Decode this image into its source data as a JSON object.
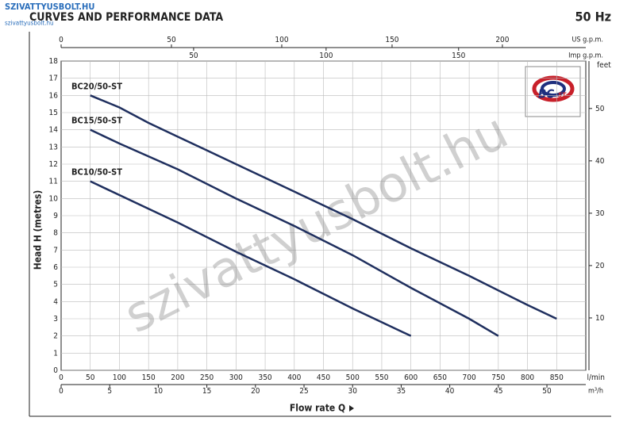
{
  "chart_data": {
    "type": "line",
    "title": "CURVES AND PERFORMANCE DATA",
    "frequency": "50 Hz",
    "brand": "SZIVATTYUSBOLT.HU",
    "brand_url": "szivattyusbolt.hu",
    "watermark": "szivattyusbolt.hu",
    "logo": {
      "main": "BC",
      "suffix": "-ST"
    },
    "xlabel": "Flow rate Q",
    "ylabel": "Head H (metres)",
    "x_unit": "l/min",
    "xlim": [
      0,
      900
    ],
    "xticks": [
      50,
      100,
      150,
      200,
      250,
      300,
      350,
      400,
      450,
      500,
      550,
      600,
      650,
      700,
      750,
      800,
      850
    ],
    "x_origin_label": 0,
    "ylim": [
      0,
      18
    ],
    "yticks": [
      0,
      1,
      2,
      3,
      4,
      5,
      6,
      7,
      8,
      9,
      10,
      11,
      12,
      13,
      14,
      15,
      16,
      17,
      18
    ],
    "grid": true,
    "secondary_axes": [
      {
        "name": "US g.p.m.",
        "position": "top",
        "lim": [
          0,
          237.8
        ],
        "ticks": [
          0,
          50,
          100,
          150,
          200
        ]
      },
      {
        "name": "Imp g.p.m.",
        "position": "top2",
        "lim": [
          0,
          198
        ],
        "ticks": [
          50,
          100,
          150
        ]
      },
      {
        "name": "m³/h",
        "position": "bottom2",
        "lim": [
          0,
          54
        ],
        "ticks": [
          0,
          5,
          10,
          15,
          20,
          25,
          30,
          35,
          40,
          45,
          50
        ]
      },
      {
        "name": "feet",
        "position": "right",
        "lim": [
          0,
          59.06
        ],
        "ticks": [
          10,
          20,
          30,
          40,
          50
        ]
      }
    ],
    "series": [
      {
        "name": "BC20/50-ST",
        "color": "#1f2f5e",
        "x": [
          50,
          100,
          150,
          200,
          250,
          300,
          400,
          500,
          600,
          700,
          800,
          850
        ],
        "values": [
          16,
          15.3,
          14.4,
          13.6,
          12.8,
          12,
          10.4,
          8.8,
          7.1,
          5.5,
          3.8,
          3
        ]
      },
      {
        "name": "BC15/50-ST",
        "color": "#1f2f5e",
        "x": [
          50,
          100,
          200,
          300,
          400,
          500,
          600,
          700,
          750
        ],
        "values": [
          14,
          13.2,
          11.7,
          10,
          8.4,
          6.7,
          4.8,
          3,
          2
        ]
      },
      {
        "name": "BC10/50-ST",
        "color": "#1f2f5e",
        "x": [
          50,
          100,
          200,
          300,
          400,
          500,
          600
        ],
        "values": [
          11,
          10.2,
          8.6,
          6.9,
          5.3,
          3.6,
          2
        ]
      }
    ]
  }
}
